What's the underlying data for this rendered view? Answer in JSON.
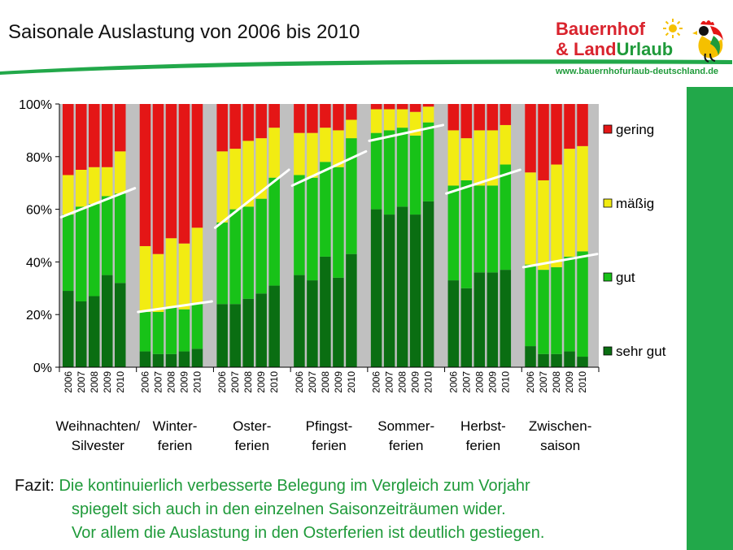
{
  "slide_title": "Saisonale Auslastung von 2006  bis 2010",
  "logo": {
    "line1": "Bauernhof",
    "line2_red": "& Land",
    "line2_green": "Urlaub",
    "url": "www.bauernhofurlaub-deutschland.de"
  },
  "conclusion": {
    "label": "Fazit:",
    "lines": [
      "Die kontinuierlich verbesserte Belegung im Vergleich zum Vorjahr",
      "spiegelt sich auch in den einzelnen Saisonzeiträumen wider.",
      "Vor allem die Auslastung in den Osterferien ist deutlich gestiegen."
    ]
  },
  "colors": {
    "sehr gut": "#0a6e12",
    "gut": "#18c218",
    "mäßig": "#f2ec12",
    "gering": "#e41616",
    "plot_bg": "#c0c0c0",
    "green_bar": "#22a84a",
    "logo_red": "#d9232d",
    "logo_green": "#1f9a3a"
  },
  "chart_data": {
    "type": "bar",
    "stacked": "percent",
    "ylim": [
      0,
      100
    ],
    "yticks": [
      "0%",
      "20%",
      "40%",
      "60%",
      "80%",
      "100%"
    ],
    "years": [
      "2006",
      "2007",
      "2008",
      "2009",
      "2010"
    ],
    "legend": [
      "gering",
      "mäßig",
      "gut",
      "sehr gut"
    ],
    "legend_position": "right",
    "groups": [
      {
        "label": [
          "Weihnachten/",
          "Silvester"
        ],
        "sehr_gut": [
          29,
          25,
          27,
          35,
          32
        ],
        "gut": [
          29,
          36,
          35,
          30,
          34
        ],
        "maessig": [
          15,
          14,
          14,
          11,
          16
        ],
        "gering": [
          27,
          25,
          24,
          24,
          18
        ],
        "trend": [
          57,
          68
        ]
      },
      {
        "label": [
          "Winter-",
          "ferien"
        ],
        "sehr_gut": [
          6,
          5,
          5,
          6,
          7
        ],
        "gut": [
          15,
          16,
          18,
          16,
          17
        ],
        "maessig": [
          25,
          22,
          26,
          25,
          29
        ],
        "gering": [
          54,
          57,
          51,
          53,
          47
        ],
        "trend": [
          21,
          25
        ]
      },
      {
        "label": [
          "Oster-",
          "ferien"
        ],
        "sehr_gut": [
          24,
          24,
          26,
          28,
          31
        ],
        "gut": [
          31,
          36,
          35,
          36,
          41
        ],
        "maessig": [
          27,
          23,
          25,
          23,
          19
        ],
        "gering": [
          18,
          17,
          14,
          13,
          9
        ],
        "trend": [
          53,
          75
        ]
      },
      {
        "label": [
          "Pfingst-",
          "ferien"
        ],
        "sehr_gut": [
          35,
          33,
          42,
          34,
          43
        ],
        "gut": [
          38,
          39,
          36,
          42,
          44
        ],
        "maessig": [
          16,
          17,
          13,
          14,
          7
        ],
        "gering": [
          11,
          11,
          9,
          10,
          6
        ],
        "trend": [
          69,
          82
        ]
      },
      {
        "label": [
          "Sommer-",
          "ferien"
        ],
        "sehr_gut": [
          60,
          58,
          61,
          58,
          63
        ],
        "gut": [
          29,
          32,
          30,
          30,
          30
        ],
        "maessig": [
          9,
          8,
          7,
          9,
          6
        ],
        "gering": [
          2,
          2,
          2,
          3,
          1
        ],
        "trend": [
          86,
          92
        ]
      },
      {
        "label": [
          "Herbst-",
          "ferien"
        ],
        "sehr_gut": [
          33,
          30,
          36,
          36,
          37
        ],
        "gut": [
          36,
          41,
          33,
          33,
          40
        ],
        "maessig": [
          21,
          16,
          21,
          21,
          15
        ],
        "gering": [
          10,
          13,
          10,
          10,
          8
        ],
        "trend": [
          66,
          75
        ]
      },
      {
        "label": [
          "Zwischen-",
          "saison"
        ],
        "sehr_gut": [
          8,
          5,
          5,
          6,
          4
        ],
        "gut": [
          31,
          32,
          33,
          36,
          40
        ],
        "maessig": [
          35,
          34,
          39,
          41,
          40
        ],
        "gering": [
          26,
          29,
          23,
          17,
          16
        ],
        "trend": [
          38,
          43
        ]
      }
    ]
  }
}
